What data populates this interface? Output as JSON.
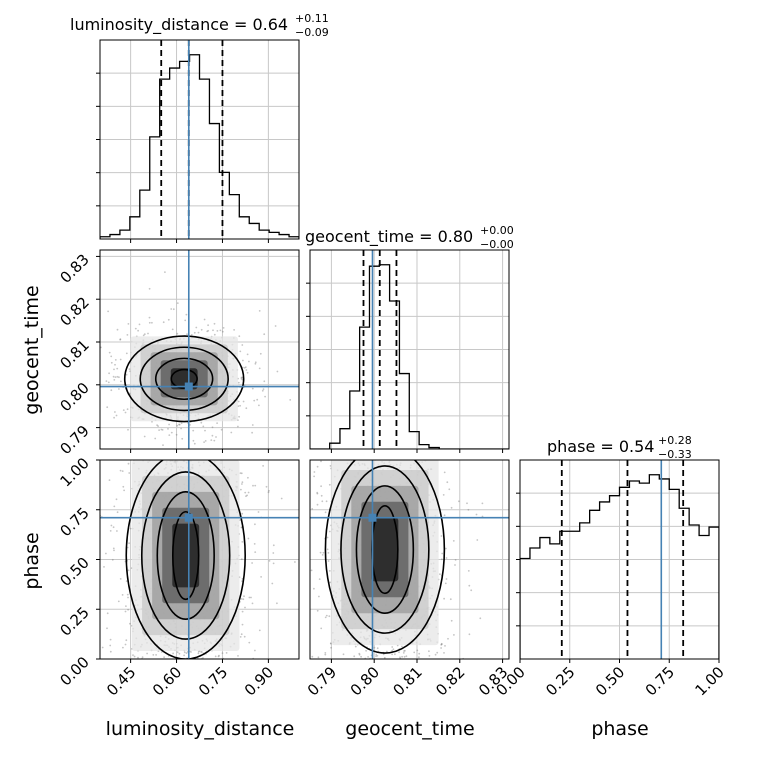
{
  "chart_data": {
    "type": "corner",
    "parameters": [
      "luminosity_distance",
      "geocent_time",
      "phase"
    ],
    "truth": {
      "luminosity_distance": 0.64,
      "geocent_time": 0.7996,
      "phase": 0.71
    },
    "colors": {
      "truth": "#4682b4",
      "hist": "#000000",
      "grid": "#c8c8c8",
      "points": "#7f7f7f"
    },
    "grid": true,
    "titles": {
      "luminosity_distance": {
        "name": "luminosity_distance",
        "value": "0.64",
        "plus": "+0.11",
        "minus": "−0.09"
      },
      "geocent_time": {
        "name": "geocent_time",
        "value": "0.80",
        "plus": "+0.00",
        "minus": "−0.00"
      },
      "phase": {
        "name": "phase",
        "value": "0.54",
        "plus": "+0.28",
        "minus": "−0.33"
      }
    },
    "axes": {
      "luminosity_distance": {
        "label": "luminosity_distance",
        "range": [
          0.35,
          1.0
        ],
        "ticks": [
          0.45,
          0.6,
          0.75,
          0.9
        ],
        "tick_labels": [
          "0.45",
          "0.60",
          "0.75",
          "0.90"
        ]
      },
      "geocent_time": {
        "label": "geocent_time",
        "range": [
          0.785,
          0.8315
        ],
        "ticks": [
          0.79,
          0.8,
          0.81,
          0.82,
          0.83
        ],
        "tick_labels": [
          "0.79",
          "0.80",
          "0.81",
          "0.82",
          "0.83"
        ]
      },
      "phase": {
        "label": "phase",
        "range": [
          0.0,
          1.0
        ],
        "ticks": [
          0.0,
          0.25,
          0.5,
          0.75,
          1.0
        ],
        "tick_labels": [
          "0.00",
          "0.25",
          "0.50",
          "0.75",
          "1.00"
        ]
      }
    },
    "marginals": {
      "luminosity_distance": {
        "bin_edges": [
          0.35,
          0.3825,
          0.415,
          0.4475,
          0.48,
          0.5125,
          0.545,
          0.5775,
          0.61,
          0.6425,
          0.675,
          0.7075,
          0.74,
          0.7725,
          0.805,
          0.8375,
          0.87,
          0.9025,
          0.935,
          0.9675,
          1.0
        ],
        "counts": [
          1,
          2,
          4,
          10,
          22,
          46,
          72,
          77,
          80,
          83,
          72,
          52,
          30,
          20,
          10,
          7,
          4,
          3,
          2,
          1
        ],
        "quantiles": [
          0.55,
          0.64,
          0.75
        ]
      },
      "geocent_time": {
        "bin_edges": [
          0.785,
          0.7873,
          0.7896,
          0.792,
          0.7943,
          0.7966,
          0.7989,
          0.8012,
          0.8036,
          0.8059,
          0.8082,
          0.8105,
          0.8128,
          0.8152,
          0.8175,
          0.8198,
          0.8221,
          0.8244,
          0.8268,
          0.8291,
          0.8315
        ],
        "counts": [
          0,
          0,
          4,
          14,
          40,
          84,
          126,
          127,
          102,
          52,
          12,
          3,
          1,
          0,
          0,
          0,
          0,
          0,
          0,
          0
        ],
        "quantiles": [
          0.7975,
          0.8013,
          0.8052
        ]
      },
      "phase": {
        "bin_edges": [
          0.0,
          0.05,
          0.1,
          0.15,
          0.2,
          0.25,
          0.3,
          0.35,
          0.4,
          0.45,
          0.5,
          0.55,
          0.6,
          0.65,
          0.7,
          0.75,
          0.8,
          0.85,
          0.9,
          0.95,
          1.0
        ],
        "counts": [
          48,
          53,
          58,
          55,
          61,
          61,
          65,
          71,
          75,
          78,
          82,
          85,
          84,
          88,
          86,
          81,
          72,
          64,
          59,
          63
        ],
        "quantiles": [
          0.21,
          0.54,
          0.82
        ]
      }
    },
    "contours_2d": {
      "geocent_time_vs_luminosity_distance": {
        "center": [
          0.625,
          0.8014
        ],
        "levels": 4
      },
      "phase_vs_luminosity_distance": {
        "center": [
          0.63,
          0.52
        ],
        "levels": 4
      },
      "phase_vs_geocent_time": {
        "center": [
          0.8025,
          0.55
        ],
        "levels": 4
      }
    }
  }
}
